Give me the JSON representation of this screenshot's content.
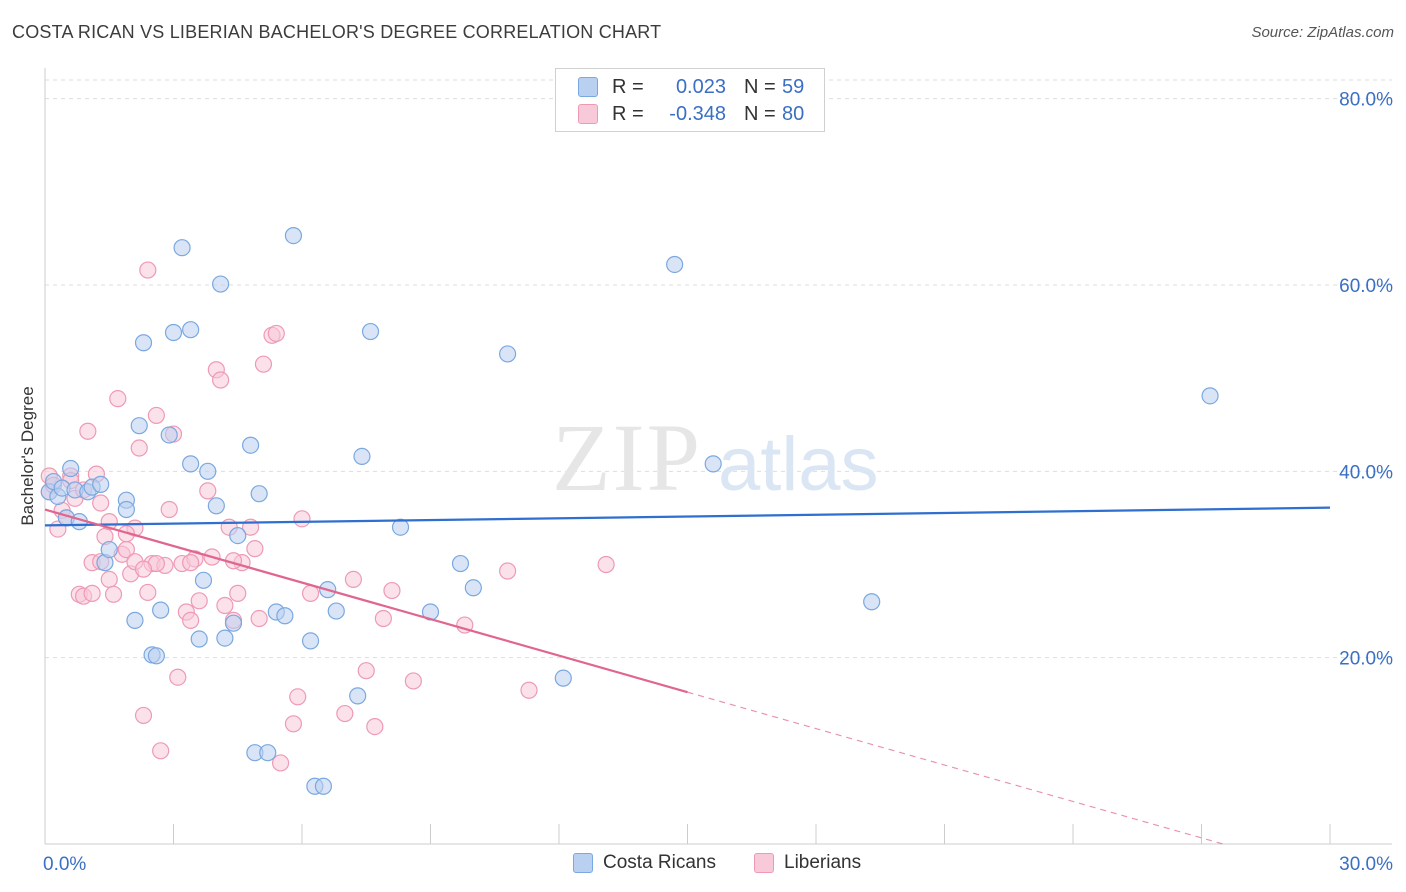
{
  "title": "COSTA RICAN VS LIBERIAN BACHELOR'S DEGREE CORRELATION CHART",
  "source": "Source: ZipAtlas.com",
  "watermark": {
    "zip": "ZIP",
    "atlas": "atlas"
  },
  "colors": {
    "blue": "#7aa8e0",
    "blue_fill": "#b9d0f0",
    "blue_line": "#2f6fcf",
    "pink": "#ee9ab5",
    "pink_fill": "#f8c9d8",
    "pink_line": "#e0668f",
    "tick_text": "#3a6fc4",
    "grid": "#dddddd"
  },
  "legend": {
    "rows": [
      {
        "r_label": "R =",
        "r_value": "0.023",
        "n_label": "N =",
        "n_value": "59",
        "color": "#b9d0f0",
        "border": "#7aa8e0"
      },
      {
        "r_label": "R =",
        "r_value": "-0.348",
        "n_label": "N =",
        "n_value": "80",
        "color": "#f8c9d8",
        "border": "#ee9ab5"
      }
    ]
  },
  "bottom_legend": [
    {
      "label": "Costa Ricans",
      "color": "#b9d0f0",
      "border": "#7aa8e0"
    },
    {
      "label": "Liberians",
      "color": "#f8c9d8",
      "border": "#ee9ab5"
    }
  ],
  "chart_data": {
    "type": "scatter",
    "title": "COSTA RICAN VS LIBERIAN BACHELOR'S DEGREE CORRELATION CHART",
    "xlabel": "",
    "ylabel": "Bachelor's Degree",
    "xlim": [
      0,
      30
    ],
    "ylim": [
      0,
      82
    ],
    "x_tick_labels": [
      "0.0%",
      "30.0%"
    ],
    "y_ticks": [
      20,
      40,
      60,
      80
    ],
    "y_tick_labels": [
      "20.0%",
      "40.0%",
      "60.0%",
      "80.0%"
    ],
    "grid": true,
    "series": [
      {
        "name": "Costa Ricans",
        "r": 0.023,
        "n": 59,
        "trend": {
          "x": [
            0,
            30
          ],
          "y": [
            34.2,
            36.1
          ]
        },
        "points": [
          [
            0.1,
            37.8
          ],
          [
            0.2,
            38.9
          ],
          [
            0.3,
            37.3
          ],
          [
            0.4,
            38.2
          ],
          [
            0.5,
            35.0
          ],
          [
            0.6,
            40.3
          ],
          [
            0.7,
            38.0
          ],
          [
            0.8,
            34.6
          ],
          [
            1.0,
            37.8
          ],
          [
            1.1,
            38.3
          ],
          [
            1.4,
            30.2
          ],
          [
            1.5,
            31.6
          ],
          [
            1.9,
            36.9
          ],
          [
            1.9,
            35.9
          ],
          [
            2.1,
            24.0
          ],
          [
            2.2,
            44.9
          ],
          [
            2.3,
            53.8
          ],
          [
            2.5,
            20.3
          ],
          [
            2.6,
            20.2
          ],
          [
            2.7,
            25.1
          ],
          [
            2.9,
            43.9
          ],
          [
            3.0,
            54.9
          ],
          [
            3.2,
            64.0
          ],
          [
            3.4,
            55.2
          ],
          [
            3.4,
            40.8
          ],
          [
            3.6,
            22.0
          ],
          [
            3.7,
            28.3
          ],
          [
            3.8,
            40.0
          ],
          [
            4.0,
            36.3
          ],
          [
            4.1,
            60.1
          ],
          [
            4.2,
            22.1
          ],
          [
            4.4,
            23.7
          ],
          [
            4.5,
            33.1
          ],
          [
            4.8,
            42.8
          ],
          [
            4.9,
            9.8
          ],
          [
            5.0,
            37.6
          ],
          [
            5.2,
            9.8
          ],
          [
            5.4,
            24.9
          ],
          [
            5.6,
            24.5
          ],
          [
            5.8,
            65.3
          ],
          [
            6.2,
            21.8
          ],
          [
            6.3,
            6.2
          ],
          [
            6.5,
            6.2
          ],
          [
            6.6,
            27.3
          ],
          [
            6.8,
            25.0
          ],
          [
            7.3,
            15.9
          ],
          [
            7.4,
            41.6
          ],
          [
            7.6,
            55.0
          ],
          [
            8.3,
            34.0
          ],
          [
            9.0,
            24.9
          ],
          [
            9.7,
            30.1
          ],
          [
            10.0,
            27.5
          ],
          [
            10.8,
            52.6
          ],
          [
            12.1,
            17.8
          ],
          [
            14.7,
            62.2
          ],
          [
            15.6,
            40.8
          ],
          [
            19.3,
            26.0
          ],
          [
            27.2,
            48.1
          ],
          [
            1.3,
            38.6
          ]
        ]
      },
      {
        "name": "Liberians",
        "r": -0.348,
        "n": 80,
        "trend": {
          "x": [
            0,
            15
          ],
          "y": [
            35.9,
            16.3
          ]
        },
        "trend_dashed": {
          "x": [
            15,
            27.5
          ],
          "y": [
            16.3,
            0
          ]
        },
        "points": [
          [
            0.1,
            39.5
          ],
          [
            0.1,
            37.8
          ],
          [
            0.2,
            38.5
          ],
          [
            0.3,
            33.8
          ],
          [
            0.4,
            35.8
          ],
          [
            0.5,
            35.0
          ],
          [
            0.6,
            39.5
          ],
          [
            0.7,
            37.1
          ],
          [
            0.8,
            26.8
          ],
          [
            0.9,
            26.6
          ],
          [
            1.0,
            44.3
          ],
          [
            1.1,
            30.2
          ],
          [
            1.2,
            39.7
          ],
          [
            1.3,
            36.6
          ],
          [
            1.3,
            30.3
          ],
          [
            1.4,
            33.0
          ],
          [
            1.5,
            28.4
          ],
          [
            1.6,
            26.8
          ],
          [
            1.7,
            47.8
          ],
          [
            1.8,
            31.1
          ],
          [
            1.9,
            31.6
          ],
          [
            2.0,
            29.0
          ],
          [
            2.1,
            30.3
          ],
          [
            2.1,
            33.9
          ],
          [
            2.2,
            42.5
          ],
          [
            2.3,
            13.8
          ],
          [
            2.4,
            27.0
          ],
          [
            2.4,
            61.6
          ],
          [
            2.5,
            30.1
          ],
          [
            2.6,
            46.0
          ],
          [
            2.7,
            10.0
          ],
          [
            2.8,
            29.9
          ],
          [
            2.9,
            35.9
          ],
          [
            3.0,
            44.0
          ],
          [
            3.1,
            17.9
          ],
          [
            3.2,
            30.1
          ],
          [
            3.3,
            24.9
          ],
          [
            3.4,
            24.0
          ],
          [
            3.5,
            30.6
          ],
          [
            3.6,
            26.1
          ],
          [
            3.8,
            37.9
          ],
          [
            3.9,
            30.8
          ],
          [
            4.0,
            50.9
          ],
          [
            4.1,
            49.8
          ],
          [
            4.2,
            25.6
          ],
          [
            4.3,
            34.0
          ],
          [
            4.4,
            24.0
          ],
          [
            4.5,
            26.9
          ],
          [
            4.6,
            30.2
          ],
          [
            4.8,
            34.0
          ],
          [
            4.9,
            31.7
          ],
          [
            5.0,
            24.2
          ],
          [
            5.1,
            51.5
          ],
          [
            5.3,
            54.6
          ],
          [
            5.4,
            54.8
          ],
          [
            5.5,
            8.7
          ],
          [
            5.8,
            12.9
          ],
          [
            5.9,
            15.8
          ],
          [
            6.0,
            34.9
          ],
          [
            6.2,
            26.9
          ],
          [
            7.0,
            14.0
          ],
          [
            7.2,
            28.4
          ],
          [
            7.5,
            18.6
          ],
          [
            7.7,
            12.6
          ],
          [
            7.9,
            24.2
          ],
          [
            8.1,
            27.2
          ],
          [
            8.6,
            17.5
          ],
          [
            9.8,
            23.5
          ],
          [
            10.8,
            29.3
          ],
          [
            11.3,
            16.5
          ],
          [
            13.1,
            30.0
          ],
          [
            0.6,
            39.0
          ],
          [
            0.9,
            38.0
          ],
          [
            1.5,
            34.6
          ],
          [
            1.9,
            33.3
          ],
          [
            2.6,
            30.1
          ],
          [
            3.4,
            30.2
          ],
          [
            4.4,
            30.4
          ],
          [
            1.1,
            26.9
          ],
          [
            2.3,
            29.5
          ]
        ]
      }
    ]
  }
}
